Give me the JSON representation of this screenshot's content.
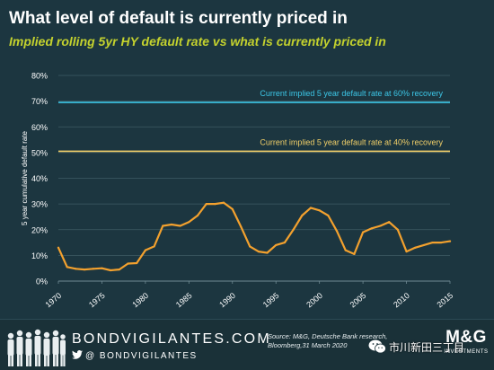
{
  "header": {
    "title": "What level of default is currently priced in",
    "subtitle": "Implied rolling 5yr HY default rate vs what is currently priced in"
  },
  "chart_data": {
    "type": "line",
    "title": "What level of default is currently priced in",
    "subtitle": "Implied rolling 5yr HY default rate vs what is currently priced in",
    "xlabel": "",
    "ylabel": "5 year cumulative default rate",
    "xlim": [
      1970,
      2015
    ],
    "ylim": [
      0,
      80
    ],
    "y_ticks": [
      "0%",
      "10%",
      "20%",
      "30%",
      "40%",
      "50%",
      "60%",
      "70%",
      "80%"
    ],
    "x_ticks": [
      "1970",
      "1975",
      "1980",
      "1985",
      "1990",
      "1995",
      "2000",
      "2005",
      "2010",
      "2015"
    ],
    "grid": "horizontal",
    "series": [
      {
        "name": "",
        "color": "#f3a12e",
        "x": [
          1970,
          1971,
          1972,
          1973,
          1974,
          1975,
          1976,
          1977,
          1978,
          1979,
          1980,
          1981,
          1982,
          1983,
          1984,
          1985,
          1986,
          1987,
          1988,
          1989,
          1990,
          1991,
          1992,
          1993,
          1994,
          1995,
          1996,
          1997,
          1998,
          1999,
          2000,
          2001,
          2002,
          2003,
          2004,
          2005,
          2006,
          2007,
          2008,
          2009,
          2010,
          2011,
          2012,
          2013,
          2014,
          2015
        ],
        "values": [
          13,
          5.5,
          4.8,
          4.5,
          4.8,
          5,
          4.2,
          4.5,
          6.8,
          7,
          12,
          13.5,
          21.5,
          22,
          21.5,
          23,
          25.5,
          30,
          30,
          30.5,
          28,
          21,
          13.5,
          11.5,
          11,
          14,
          15,
          20,
          25.5,
          28.5,
          27.5,
          25.5,
          19.5,
          12,
          10.5,
          19,
          20.5,
          21.5,
          23,
          20,
          11.5,
          13,
          14,
          15,
          15,
          15.5
        ]
      }
    ],
    "reference_lines": [
      {
        "label": "Current implied  5 year default rate at 60% recovery",
        "y": 69.5,
        "color": "#3cc6e6"
      },
      {
        "label": "Current implied 5 year default rate at 40% recovery",
        "y": 50.5,
        "color": "#f1cf68"
      }
    ]
  },
  "footer": {
    "brand": "BONDVIGILANTES.COM",
    "handle": "@ BONDVIGILANTES",
    "source_line1": "Source: M&G, Deutsche Bank research,",
    "source_line2": "Bloomberg,31 March 2020",
    "wechat_text": "市川新田三丁目",
    "logo_text": "M&G",
    "logo_sub": "INVESTMENTS"
  }
}
